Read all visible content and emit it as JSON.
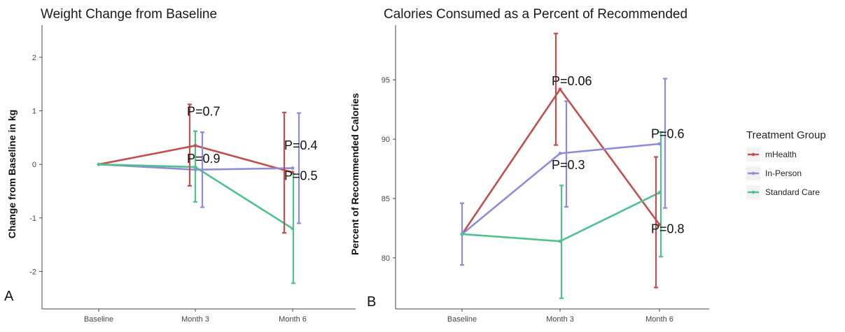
{
  "chart_data": [
    {
      "type": "line",
      "panel_label": "A",
      "title": "Weight Change from Baseline",
      "xlabel": "",
      "ylabel": "Change from Baseline in kg",
      "categories": [
        "Baseline",
        "Month 3",
        "Month 6"
      ],
      "y_ticks": [
        "-2",
        "-1",
        "0",
        "1",
        "2"
      ],
      "ylim": [
        -2.7,
        2.6
      ],
      "grid": false,
      "series": [
        {
          "name": "mHealth",
          "color": "#c0504d",
          "values": [
            0,
            0.35,
            -0.15
          ],
          "err_low": [
            0,
            -0.4,
            -1.28
          ],
          "err_high": [
            0,
            1.12,
            0.97
          ]
        },
        {
          "name": "In-Person",
          "color": "#8e8cd8",
          "values": [
            0,
            -0.1,
            -0.07
          ],
          "err_low": [
            0,
            -0.8,
            -1.1
          ],
          "err_high": [
            0,
            0.6,
            0.96
          ]
        },
        {
          "name": "Standard Care",
          "color": "#4fc18c",
          "values": [
            0,
            -0.05,
            -1.2
          ],
          "err_low": [
            0,
            -0.7,
            -2.22
          ],
          "err_high": [
            0,
            0.62,
            -0.18
          ]
        }
      ],
      "annotations": [
        {
          "text": "P=0.7",
          "x": "Month 3",
          "y": 1.0
        },
        {
          "text": "P=0.9",
          "x": "Month 3",
          "y": 0.12
        },
        {
          "text": "P=0.4",
          "x": "Month 6",
          "y": 0.37
        },
        {
          "text": "P=0.5",
          "x": "Month 6",
          "y": -0.2
        }
      ]
    },
    {
      "type": "line",
      "panel_label": "B",
      "title": "Calories Consumed as a Percent of Recommended",
      "xlabel": "",
      "ylabel": "Percent of Recommended Calories",
      "categories": [
        "Baseline",
        "Month 3",
        "Month 6"
      ],
      "y_ticks": [
        "80",
        "85",
        "90",
        "95"
      ],
      "ylim": [
        75.7,
        99.6
      ],
      "grid": false,
      "series": [
        {
          "name": "mHealth",
          "color": "#c0504d",
          "values": [
            82,
            94.2,
            82.8
          ],
          "err_low": [
            82,
            89.5,
            77.5
          ],
          "err_high": [
            82,
            98.9,
            88.5
          ]
        },
        {
          "name": "In-Person",
          "color": "#8e8cd8",
          "values": [
            82,
            88.8,
            89.6
          ],
          "err_low": [
            79.4,
            84.3,
            84.2
          ],
          "err_high": [
            84.6,
            93.2,
            95.1
          ]
        },
        {
          "name": "Standard Care",
          "color": "#4fc18c",
          "values": [
            82,
            81.4,
            85.5
          ],
          "err_low": [
            82,
            76.6,
            80.1
          ],
          "err_high": [
            82,
            86.1,
            90.6
          ]
        }
      ],
      "annotations": [
        {
          "text": "P=0.06",
          "x": "Month 3",
          "y": 94.95
        },
        {
          "text": "P=0.3",
          "x": "Month 3",
          "y": 87.9
        },
        {
          "text": "P=0.6",
          "x": "Month 6",
          "y": 90.5
        },
        {
          "text": "P=0.8",
          "x": "Month 6",
          "y": 82.5
        }
      ]
    }
  ],
  "legend": {
    "title": "Treatment Group",
    "position": "right",
    "items": [
      {
        "label": "mHealth",
        "color": "#c0504d"
      },
      {
        "label": "In-Person",
        "color": "#8e8cd8"
      },
      {
        "label": "Standard Care",
        "color": "#4fc18c"
      }
    ]
  }
}
